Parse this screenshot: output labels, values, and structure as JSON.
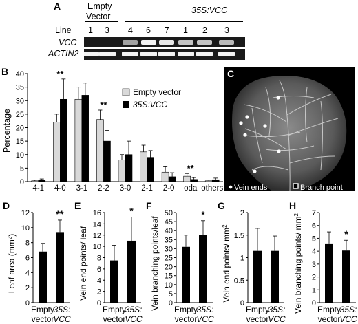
{
  "panels": {
    "A": {
      "letter": "A",
      "empty_vector_label_1": "Empty",
      "empty_vector_label_2": "Vector",
      "construct_label": "35S:VCC",
      "line_label": "Line",
      "lines": [
        "1",
        "3",
        "4",
        "6",
        "7",
        "1",
        "2",
        "3"
      ],
      "gene1": "VCC",
      "gene2": "ACTIN2"
    },
    "B": {
      "letter": "B",
      "ylabel": "Percentage",
      "legend": [
        "Empty vector",
        "35S:VCC"
      ],
      "significance": [
        "**",
        "**",
        "**"
      ]
    },
    "C": {
      "letter": "C",
      "legend_vein_ends": "Vein ends",
      "legend_branch_point": "Branch point"
    },
    "D": {
      "letter": "D",
      "ylabel": "Leaf area (mm",
      "ylabel_sup": "2",
      "ylabel_end": ")",
      "significance": "**"
    },
    "E": {
      "letter": "E",
      "ylabel": "Vein end points/ leaf",
      "significance": "*"
    },
    "F": {
      "letter": "F",
      "ylabel": "Vein branching points/leaf",
      "significance": "*"
    },
    "G": {
      "letter": "G",
      "ylabel": "Vein end points/ mm",
      "ylabel_sup": "2"
    },
    "H": {
      "letter": "H",
      "ylabel": "Vein branching points/ mm",
      "ylabel_sup": "2",
      "significance": "*"
    },
    "xcats": {
      "c1a": "Empty",
      "c1b": "vector",
      "c2a": "35S:",
      "c2b": "VCC"
    }
  },
  "colors": {
    "empty_vector": "#d9d9d9",
    "vcc": "#000000"
  },
  "chart_data": [
    {
      "type": "bar",
      "panel": "B",
      "categories": [
        "4-1",
        "4-0",
        "3-1",
        "2-2",
        "3-0",
        "2-1",
        "2-0",
        "oda",
        "others"
      ],
      "series": [
        {
          "name": "Empty vector",
          "values": [
            0.3,
            22,
            30.5,
            23,
            8,
            11,
            3.5,
            2,
            0.3
          ],
          "errors": [
            0.3,
            3,
            4.5,
            3.5,
            2,
            2.5,
            2,
            1,
            0.3
          ]
        },
        {
          "name": "35S:VCC",
          "values": [
            0.5,
            30.5,
            32,
            15,
            10,
            9,
            1.8,
            0.8,
            0.7
          ],
          "errors": [
            0.5,
            7.5,
            4.5,
            4,
            5,
            2.5,
            1.5,
            0.7,
            0.6
          ]
        }
      ],
      "ylabel": "Percentage",
      "ylim": [
        0,
        40
      ],
      "yticks": [
        0,
        5,
        10,
        15,
        20,
        25,
        30,
        35,
        40
      ],
      "significant_categories": [
        "4-0",
        "2-2",
        "oda"
      ]
    },
    {
      "type": "bar",
      "panel": "D",
      "categories": [
        "Empty vector",
        "35S:VCC"
      ],
      "values": [
        6.8,
        9.4
      ],
      "errors": [
        1.1,
        1.6
      ],
      "ylabel": "Leaf area (mm2)",
      "ylim": [
        0,
        12
      ],
      "yticks": [
        0,
        2,
        4,
        6,
        8,
        10,
        12
      ]
    },
    {
      "type": "bar",
      "panel": "E",
      "categories": [
        "Empty vector",
        "35S:VCC"
      ],
      "values": [
        7.5,
        11
      ],
      "errors": [
        2.7,
        4.2
      ],
      "ylabel": "Vein end points/ leaf",
      "ylim": [
        0,
        16
      ],
      "yticks": [
        0,
        2,
        4,
        6,
        8,
        10,
        12,
        14,
        16
      ]
    },
    {
      "type": "bar",
      "panel": "F",
      "categories": [
        "Empty vector",
        "35S:VCC"
      ],
      "values": [
        31,
        37.5
      ],
      "errors": [
        6.5,
        8
      ],
      "ylabel": "Vein branching points/leaf",
      "ylim": [
        0,
        50
      ],
      "yticks": [
        0,
        5,
        10,
        15,
        20,
        25,
        30,
        35,
        40,
        45,
        50
      ]
    },
    {
      "type": "bar",
      "panel": "G",
      "categories": [
        "Empty vector",
        "35S:VCC"
      ],
      "values": [
        1.15,
        1.15
      ],
      "errors": [
        0.5,
        0.33
      ],
      "ylabel": "Vein end points/ mm2",
      "ylim": [
        0,
        2
      ],
      "yticks": [
        0,
        0.5,
        1,
        1.5,
        2
      ]
    },
    {
      "type": "bar",
      "panel": "H",
      "categories": [
        "Empty vector",
        "35S:VCC"
      ],
      "values": [
        4.6,
        4.05
      ],
      "errors": [
        0.9,
        0.8
      ],
      "ylabel": "Vein branching points/ mm2",
      "ylim": [
        0,
        7
      ],
      "yticks": [
        0,
        1,
        2,
        3,
        4,
        5,
        6,
        7
      ]
    }
  ]
}
